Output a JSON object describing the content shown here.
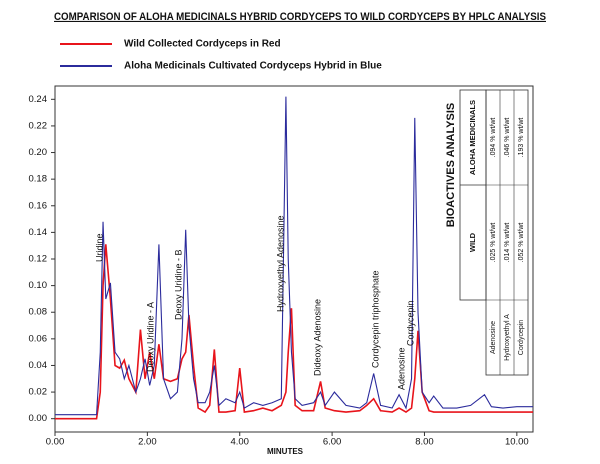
{
  "chart_data": {
    "type": "line",
    "title": "COMPARISON OF ALOHA MEDICINALS HYBRID CORDYCEPS TO WILD CORDYCEPS BY HPLC ANALYSIS",
    "x_label": "MINUTES",
    "x": [
      0,
      0.9,
      0.98,
      1.04,
      1.1,
      1.2,
      1.3,
      1.4,
      1.5,
      1.6,
      1.75,
      1.85,
      1.95,
      2.05,
      2.15,
      2.25,
      2.35,
      2.5,
      2.65,
      2.75,
      2.83,
      2.9,
      3.0,
      3.1,
      3.25,
      3.35,
      3.45,
      3.55,
      3.7,
      3.9,
      4.0,
      4.1,
      4.3,
      4.5,
      4.7,
      4.9,
      5.0,
      5.05,
      5.12,
      5.2,
      5.35,
      5.6,
      5.75,
      5.85,
      6.05,
      6.3,
      6.6,
      6.75,
      6.9,
      7.05,
      7.3,
      7.45,
      7.6,
      7.72,
      7.79,
      7.86,
      7.95,
      8.1,
      8.2,
      8.4,
      8.7,
      9.0,
      9.3,
      9.45,
      9.7,
      10.0,
      10.35
    ],
    "series": [
      {
        "name": "Wild Collected Cordyceps in Red",
        "color": "#e8141b",
        "values": [
          0.0,
          0.0,
          0.02,
          0.1,
          0.131,
          0.09,
          0.04,
          0.038,
          0.044,
          0.03,
          0.02,
          0.067,
          0.03,
          0.05,
          0.03,
          0.056,
          0.03,
          0.028,
          0.03,
          0.045,
          0.05,
          0.078,
          0.04,
          0.008,
          0.005,
          0.01,
          0.052,
          0.005,
          0.005,
          0.006,
          0.038,
          0.005,
          0.006,
          0.008,
          0.006,
          0.01,
          0.02,
          0.05,
          0.083,
          0.01,
          0.006,
          0.006,
          0.028,
          0.008,
          0.006,
          0.005,
          0.006,
          0.01,
          0.015,
          0.006,
          0.005,
          0.008,
          0.005,
          0.008,
          0.03,
          0.066,
          0.02,
          0.006,
          0.005,
          0.005,
          0.005,
          0.005,
          0.005,
          0.005,
          0.005,
          0.005,
          0.005
        ]
      },
      {
        "name": "Aloha Medicinals Cultivated Cordyceps Hybrid in Blue",
        "color": "#2b2b9c",
        "values": [
          0.003,
          0.003,
          0.05,
          0.148,
          0.09,
          0.102,
          0.05,
          0.045,
          0.03,
          0.04,
          0.02,
          0.03,
          0.045,
          0.025,
          0.04,
          0.131,
          0.03,
          0.015,
          0.02,
          0.06,
          0.142,
          0.07,
          0.03,
          0.012,
          0.012,
          0.02,
          0.04,
          0.01,
          0.015,
          0.012,
          0.02,
          0.008,
          0.012,
          0.01,
          0.012,
          0.015,
          0.242,
          0.12,
          0.05,
          0.015,
          0.01,
          0.012,
          0.02,
          0.01,
          0.02,
          0.01,
          0.008,
          0.012,
          0.034,
          0.01,
          0.008,
          0.018,
          0.008,
          0.03,
          0.226,
          0.08,
          0.02,
          0.012,
          0.017,
          0.008,
          0.008,
          0.01,
          0.018,
          0.009,
          0.008,
          0.009,
          0.009
        ]
      }
    ],
    "xlim": [
      0,
      10.35
    ],
    "ylim": [
      -0.01,
      0.25
    ],
    "xticks": [
      {
        "value": 0,
        "label": "0.00"
      },
      {
        "value": 2,
        "label": "2.00"
      },
      {
        "value": 4,
        "label": "4.00"
      },
      {
        "value": 6,
        "label": "6.00"
      },
      {
        "value": 8,
        "label": "8.00"
      },
      {
        "value": 10,
        "label": "10.00"
      }
    ],
    "yticks": [
      {
        "value": 0,
        "label": "0.00"
      },
      {
        "value": 0.02,
        "label": "0.02"
      },
      {
        "value": 0.04,
        "label": "0.04"
      },
      {
        "value": 0.06,
        "label": "0.06"
      },
      {
        "value": 0.08,
        "label": "0.08"
      },
      {
        "value": 0.1,
        "label": "0.10"
      },
      {
        "value": 0.12,
        "label": "0.12"
      },
      {
        "value": 0.14,
        "label": "0.14"
      },
      {
        "value": 0.16,
        "label": "0.16"
      },
      {
        "value": 0.18,
        "label": "0.18"
      },
      {
        "value": 0.2,
        "label": "0.20"
      },
      {
        "value": 0.22,
        "label": "0.22"
      },
      {
        "value": 0.24,
        "label": "0.24"
      }
    ],
    "grid": false,
    "annotations": [
      "Uridine",
      "Deoxy Uridine - A",
      "Deoxy Uridine - B",
      "Hydroxyethyl Adenosine",
      "Dideoxy Adenosine",
      "Cordycepin triphosphate",
      "Adenosine",
      "Cordycepin"
    ]
  },
  "table": {
    "title": "BIOACTIVES ANALYSIS",
    "columns": [
      "WILD",
      "ALOHA MEDICINALS"
    ],
    "rows": [
      [
        "Adenosine",
        ".025 % wt/wt",
        ".094 % wt/wt"
      ],
      [
        "Hydroxyethyl A",
        ".014 % wt/wt",
        ".046 % wt/wt"
      ],
      [
        "Cordycepin",
        ".052 % wt/wt",
        ".193 % wt/wt"
      ]
    ]
  }
}
